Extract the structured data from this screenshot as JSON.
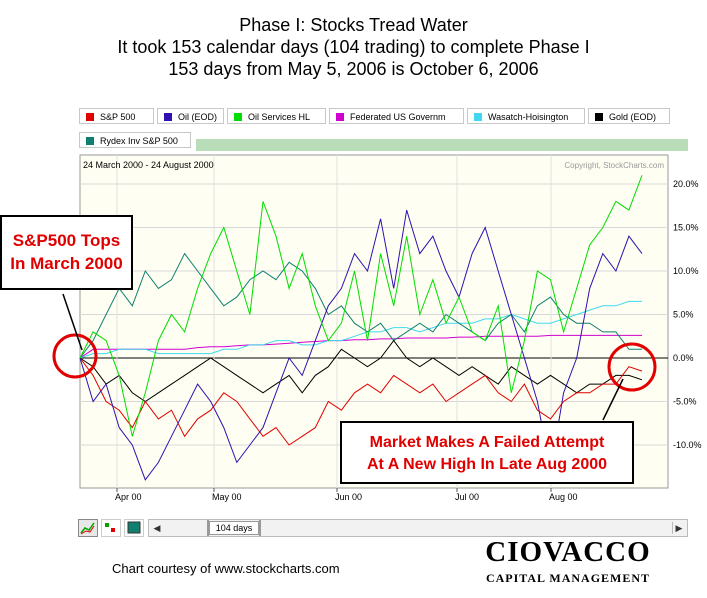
{
  "header": {
    "line1": "Phase I: Stocks Tread Water",
    "line2": "It took 153 calendar days (104 trading) to complete Phase I",
    "line3": "153 days from May 5, 2006 is October 6, 2006"
  },
  "chart_data": {
    "type": "line",
    "date_range": "24 March 2000 - 24 August 2000",
    "copyright": "Copyright, StockCharts.com",
    "x_tick_labels": [
      "Apr 00",
      "May 00",
      "Jun 00",
      "Jul 00",
      "Aug 00"
    ],
    "y_tick_labels": [
      "20.0%",
      "15.0%",
      "10.0%",
      "5.0%",
      "0.0%",
      "-5.0%",
      "-10.0%"
    ],
    "ylim": [
      -15,
      22
    ],
    "grid": true,
    "legend_placement": "top",
    "series": [
      {
        "name": "S&P 500",
        "color": "#e00000",
        "values": [
          0,
          -2,
          -5,
          -6,
          -8,
          -5,
          -7,
          -6,
          -9,
          -7,
          -6,
          -4,
          -5,
          -7,
          -9,
          -8,
          -10,
          -9,
          -8,
          -5,
          -6,
          -4,
          -3,
          -4,
          -2,
          -3,
          -4,
          -3,
          -5,
          -4,
          -3,
          -2,
          -4,
          -5,
          -3,
          -6,
          -7,
          -5,
          -4,
          -4,
          -3,
          -3,
          -1,
          -1.5
        ]
      },
      {
        "name": "Oil (EOD)",
        "color": "#3010b0",
        "values": [
          0,
          -5,
          -3,
          -8,
          -10,
          -14,
          -12,
          -9,
          -6,
          -3,
          -5,
          -8,
          -12,
          -10,
          -8,
          -4,
          0,
          -2,
          2,
          6,
          8,
          12,
          10,
          16,
          8,
          17,
          12,
          14,
          10,
          7,
          12,
          15,
          10,
          5,
          0,
          -5,
          -13,
          -4,
          0,
          8,
          12,
          10,
          14,
          12
        ]
      },
      {
        "name": "Oil Services HL",
        "color": "#00dd00",
        "values": [
          0,
          3,
          2,
          -2,
          -9,
          -4,
          2,
          5,
          3,
          8,
          12,
          15,
          10,
          5,
          18,
          14,
          8,
          12,
          6,
          2,
          4,
          10,
          2,
          12,
          6,
          14,
          5,
          9,
          4,
          7,
          3,
          2,
          6,
          -4,
          2,
          10,
          9,
          3,
          8,
          13,
          15,
          18,
          17,
          21
        ]
      },
      {
        "name": "Federated US Governm",
        "color": "#d000d0",
        "values": [
          0,
          1,
          1,
          1,
          1,
          1,
          1,
          1,
          1,
          1.2,
          1.3,
          1.3,
          1.4,
          1.5,
          1.5,
          1.6,
          1.7,
          1.8,
          1.9,
          2.0,
          2.0,
          2.1,
          2.1,
          2.2,
          2.2,
          2.3,
          2.3,
          2.3,
          2.3,
          2.4,
          2.4,
          2.5,
          2.5,
          2.5,
          2.5,
          2.5,
          2.6,
          2.6,
          2.6,
          2.6,
          2.6,
          2.6,
          2.6,
          2.6
        ]
      },
      {
        "name": "Wasatch-Hoisington",
        "color": "#40d8f0",
        "values": [
          0,
          0.5,
          0.5,
          1,
          1,
          1,
          0.5,
          0.5,
          0.5,
          0.5,
          0.5,
          1,
          1,
          1.5,
          1.5,
          2,
          2,
          1.5,
          1.5,
          2,
          2,
          2.5,
          3,
          3,
          3.5,
          3.5,
          3,
          3.5,
          4,
          4,
          4,
          4.5,
          4.5,
          5,
          4.5,
          4,
          4,
          4.5,
          5,
          5.5,
          6,
          6,
          6.5,
          6.5
        ]
      },
      {
        "name": "Gold (EOD)",
        "color": "#000000",
        "values": [
          0,
          -1,
          -3,
          -2,
          -4,
          -5,
          -4,
          -3,
          -2,
          -1,
          0,
          -1,
          -2,
          -3,
          -4,
          -3,
          -2,
          -4,
          -2,
          -1,
          1,
          0,
          -1,
          0,
          2,
          0,
          -1,
          0,
          -1,
          -2,
          -1,
          -2,
          -3,
          -1,
          -2,
          -3,
          -2,
          -3,
          -4,
          -3,
          -3,
          -2,
          -2,
          -2.5
        ]
      },
      {
        "name": "Rydex Inv S&P 500",
        "color": "#0f8070",
        "values": [
          0,
          2,
          5,
          8,
          6,
          10,
          8,
          9,
          12,
          10,
          8,
          6,
          7,
          9,
          10,
          9,
          11,
          10,
          8,
          5,
          6,
          4,
          3,
          4,
          2,
          3,
          4,
          3,
          5,
          4,
          3,
          2,
          4,
          5,
          3,
          6,
          7,
          5,
          4,
          4,
          3,
          3,
          1,
          1
        ]
      }
    ]
  },
  "annotations": {
    "left_box_line1": "S&P500 Tops",
    "left_box_line2": "In March 2000",
    "right_box_line1": "Market Makes A Failed Attempt",
    "right_box_line2": "At A New High In Late Aug 2000"
  },
  "navigator": {
    "period_label": "104 days"
  },
  "footer": {
    "courtesy": "Chart courtesy of www.stockcharts.com",
    "logo_main": "CIOVACCO",
    "logo_sub": "CAPITAL MANAGEMENT"
  }
}
